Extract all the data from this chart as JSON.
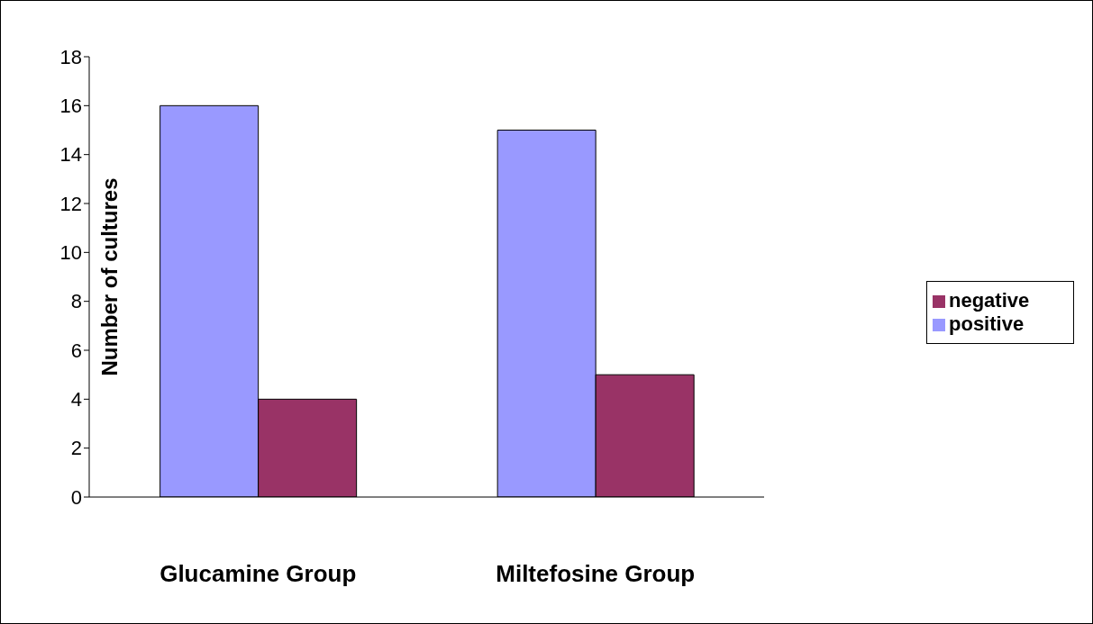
{
  "chart_data": {
    "type": "bar",
    "ylabel": "Number of cultures",
    "categories": [
      "Glucamine Group",
      "Miltefosine Group"
    ],
    "series": [
      {
        "name": "positive",
        "color": "#9999ff",
        "values": [
          16,
          15
        ]
      },
      {
        "name": "negative",
        "color": "#993366",
        "values": [
          4,
          5
        ]
      }
    ],
    "ylim": [
      0,
      18
    ],
    "yticks": [
      0,
      2,
      4,
      6,
      8,
      10,
      12,
      14,
      16,
      18
    ],
    "grid": false,
    "legend": "right"
  }
}
